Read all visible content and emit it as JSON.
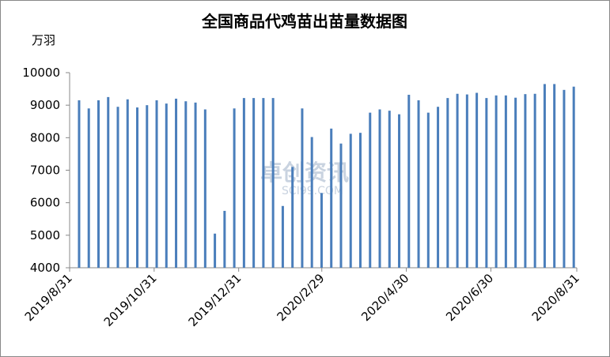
{
  "chart_data": {
    "type": "bar",
    "title": "全国商品代鸡苗出苗量数据图",
    "y_label": "万羽",
    "watermark": [
      "卓创资讯",
      "SCI99.COM"
    ],
    "color": "#4a7ebb",
    "categories": [
      null,
      null,
      null,
      null,
      null,
      null,
      null,
      null,
      null,
      null,
      null,
      null,
      null,
      null,
      null,
      null,
      null,
      null,
      null,
      null,
      null,
      null,
      null,
      null,
      null,
      null,
      null,
      null,
      null,
      null,
      null,
      null,
      null,
      null,
      null,
      null,
      null,
      null,
      null,
      null,
      null,
      null,
      null,
      null,
      null,
      null,
      null,
      null,
      null,
      null,
      null,
      null
    ],
    "values": [
      9150,
      8900,
      9150,
      9250,
      8950,
      9180,
      8930,
      9000,
      9150,
      9050,
      9200,
      9120,
      9080,
      8870,
      5050,
      5750,
      8900,
      9220,
      9220,
      9220,
      9220,
      5900,
      7100,
      8900,
      8020,
      6300,
      8280,
      7820,
      8120,
      8150,
      8770,
      8870,
      8830,
      8720,
      9320,
      9150,
      8770,
      8950,
      9220,
      9350,
      9330,
      9380,
      9220,
      9300,
      9300,
      9230,
      9340,
      9350,
      9650,
      9650,
      9470,
      9570
    ],
    "xlim": [
      "2019/8/31",
      "2020/8/31"
    ],
    "xticks": [
      "2019/8/31",
      "2019/10/31",
      "2019/12/31",
      "2020/2/29",
      "2020/4/30",
      "2020/6/30",
      "2020/8/31"
    ],
    "ylim": [
      4000,
      10000
    ],
    "yticks": [
      4000,
      5000,
      6000,
      7000,
      8000,
      9000,
      10000
    ],
    "grid": false
  }
}
